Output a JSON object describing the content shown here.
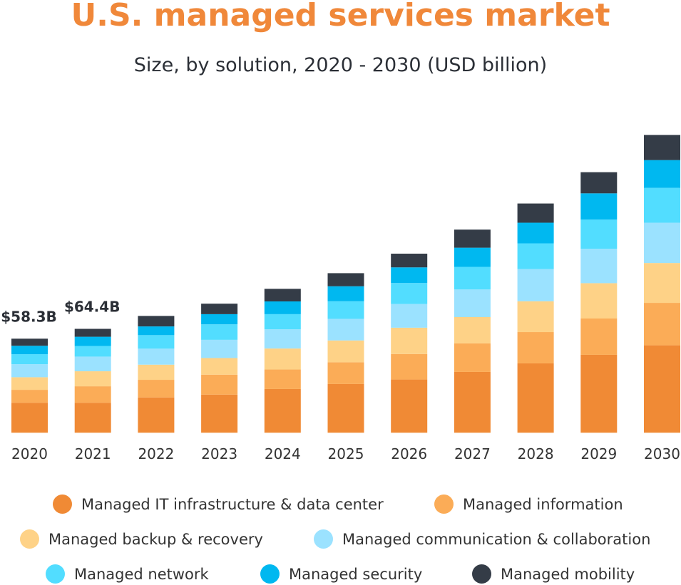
{
  "chart_data": {
    "type": "bar",
    "stacked": true,
    "title": "U.S. managed services market",
    "subtitle": "Size, by solution, 2020 - 2030 (USD billion)",
    "xlabel": "",
    "ylabel": "",
    "ylim": [
      0,
      190
    ],
    "grid": false,
    "legend_placement": "bottom",
    "categories": [
      "2020",
      "2021",
      "2022",
      "2023",
      "2024",
      "2025",
      "2026",
      "2027",
      "2028",
      "2029",
      "2030"
    ],
    "series": [
      {
        "name": "Managed IT infrastructure & data center",
        "color": "#F08A35",
        "values": [
          18.6,
          18.6,
          21.9,
          23.6,
          27.1,
          30.2,
          33.0,
          37.7,
          43.0,
          48.3,
          54.2
        ]
      },
      {
        "name": "Managed information",
        "color": "#FBAC57",
        "values": [
          8.0,
          10.2,
          10.9,
          12.4,
          12.1,
          13.5,
          15.8,
          17.7,
          19.4,
          22.5,
          26.3
        ]
      },
      {
        "name": "Managed backup & recovery",
        "color": "#FED287",
        "values": [
          7.8,
          9.3,
          9.4,
          10.3,
          13.0,
          13.5,
          16.3,
          16.3,
          19.1,
          21.9,
          24.7
        ]
      },
      {
        "name": "Managed communication & collaboration",
        "color": "#9BE2FF",
        "values": [
          8.1,
          9.1,
          9.9,
          11.3,
          11.9,
          13.4,
          14.7,
          17.1,
          20.0,
          21.3,
          25.0
        ]
      },
      {
        "name": "Managed network",
        "color": "#52DDFF",
        "values": [
          6.2,
          6.6,
          8.4,
          9.6,
          9.4,
          10.9,
          13.0,
          14.0,
          15.9,
          18.1,
          21.6
        ]
      },
      {
        "name": "Managed security",
        "color": "#00B8F0",
        "values": [
          5.2,
          5.7,
          5.4,
          6.3,
          7.9,
          9.3,
          9.7,
          11.9,
          12.8,
          16.3,
          17.2
        ]
      },
      {
        "name": "Managed mobility",
        "color": "#343C47",
        "values": [
          4.4,
          4.9,
          6.5,
          6.5,
          7.8,
          8.1,
          8.5,
          11.2,
          11.9,
          13.1,
          15.6
        ]
      }
    ],
    "annotations": [
      {
        "category": "2020",
        "text": "$58.3B"
      },
      {
        "category": "2021",
        "text": "$64.4B"
      }
    ]
  }
}
